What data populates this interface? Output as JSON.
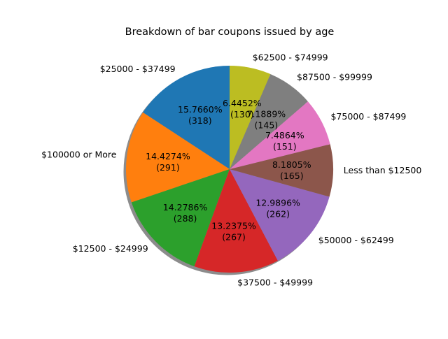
{
  "chart_data": {
    "type": "pie",
    "title": "Breakdown of bar coupons issued by age",
    "shadow": true,
    "start_angle_deg": 90,
    "direction": "counterclockwise",
    "slices": [
      {
        "label": "$25000 - $37499",
        "pct_text": "15.7660%",
        "count_text": "(318)",
        "value": 318,
        "color": "#1f77b4"
      },
      {
        "label": "$100000 or More",
        "pct_text": "14.4274%",
        "count_text": "(291)",
        "value": 291,
        "color": "#ff7f0e"
      },
      {
        "label": "$12500 - $24999",
        "pct_text": "14.2786%",
        "count_text": "(288)",
        "value": 288,
        "color": "#2ca02c"
      },
      {
        "label": "$37500 - $49999",
        "pct_text": "13.2375%",
        "count_text": "(267)",
        "value": 267,
        "color": "#d62728"
      },
      {
        "label": "$50000 - $62499",
        "pct_text": "12.9896%",
        "count_text": "(262)",
        "value": 262,
        "color": "#9467bd"
      },
      {
        "label": "Less than $12500",
        "pct_text": "8.1805%",
        "count_text": "(165)",
        "value": 165,
        "color": "#8c564b"
      },
      {
        "label": "$75000 - $87499",
        "pct_text": "7.4864%",
        "count_text": "(151)",
        "value": 151,
        "color": "#e377c2"
      },
      {
        "label": "$87500 - $99999",
        "pct_text": "7.1889%",
        "count_text": "(145)",
        "value": 145,
        "color": "#7f7f7f"
      },
      {
        "label": "$62500 - $74999",
        "pct_text": "6.4452%",
        "count_text": "(130)",
        "value": 130,
        "color": "#bcbd22"
      }
    ]
  }
}
